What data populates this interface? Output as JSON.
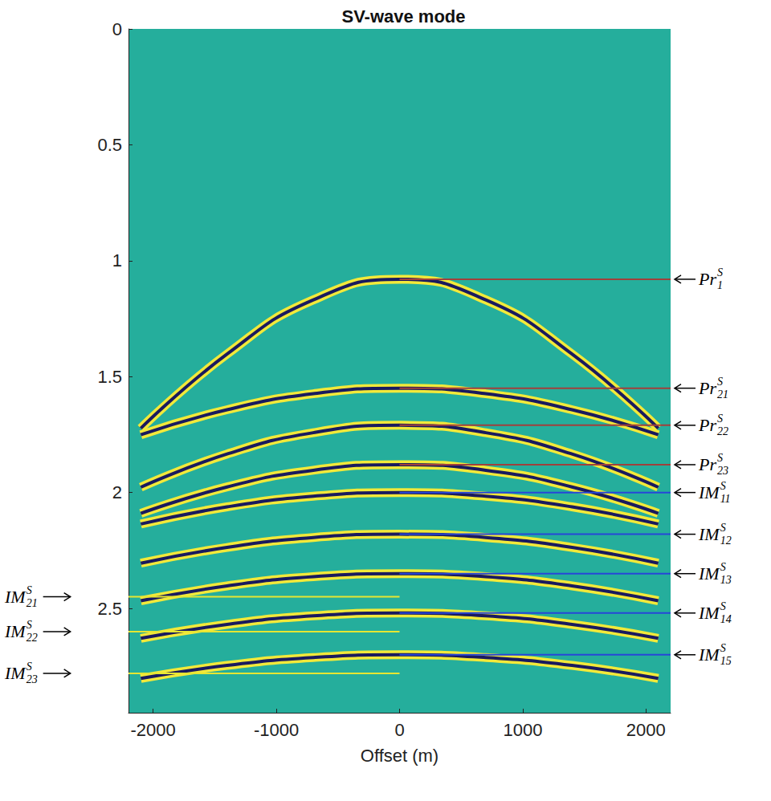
{
  "chart_data": {
    "type": "line",
    "title": "SV-wave mode",
    "x_label": "Offset (m)",
    "xlim": [
      -2200,
      2200
    ],
    "xticks": [
      -2000,
      -1000,
      0,
      1000,
      2000
    ],
    "ylim": [
      0,
      2.95
    ],
    "yticks": [
      0,
      0.5,
      1,
      1.5,
      2,
      2.5
    ],
    "grid": false,
    "color": "#1a1a5e",
    "x": [
      -2100,
      -1400,
      -700,
      0,
      700,
      1400,
      2100
    ],
    "series": [
      {
        "values": [
          1.723,
          1.403,
          1.169,
          1.08,
          1.169,
          1.403,
          1.723
        ]
      },
      {
        "values": [
          1.751,
          1.643,
          1.574,
          1.55,
          1.574,
          1.643,
          1.751
        ]
      },
      {
        "values": [
          1.977,
          1.834,
          1.742,
          1.71,
          1.742,
          1.834,
          1.977
        ]
      },
      {
        "values": [
          2.09,
          1.976,
          1.904,
          1.88,
          1.904,
          1.976,
          2.09
        ]
      },
      {
        "values": [
          2.136,
          2.062,
          2.016,
          2.0,
          2.016,
          2.062,
          2.136
        ]
      },
      {
        "values": [
          2.305,
          2.237,
          2.194,
          2.18,
          2.194,
          2.237,
          2.305
        ]
      },
      {
        "values": [
          2.467,
          2.403,
          2.363,
          2.35,
          2.363,
          2.403,
          2.467
        ]
      },
      {
        "values": [
          2.629,
          2.569,
          2.532,
          2.52,
          2.532,
          2.569,
          2.629
        ]
      },
      {
        "values": [
          2.802,
          2.746,
          2.712,
          2.7,
          2.712,
          2.746,
          2.802
        ]
      }
    ],
    "annotations": [
      {
        "text": "Pr",
        "sub": "1",
        "sup": "S",
        "y": 1.08,
        "side": "right",
        "color": "#a0403c"
      },
      {
        "text": "Pr",
        "sub": "21",
        "sup": "S",
        "y": 1.55,
        "side": "right",
        "color": "#a0403c"
      },
      {
        "text": "Pr",
        "sub": "22",
        "sup": "S",
        "y": 1.71,
        "side": "right",
        "color": "#a0403c"
      },
      {
        "text": "Pr",
        "sub": "23",
        "sup": "S",
        "y": 1.88,
        "side": "right",
        "color": "#a0403c"
      },
      {
        "text": "IM",
        "sub": "11",
        "sup": "S",
        "y": 2.0,
        "side": "right",
        "color": "#2746d8"
      },
      {
        "text": "IM",
        "sub": "12",
        "sup": "S",
        "y": 2.18,
        "side": "right",
        "color": "#2746d8"
      },
      {
        "text": "IM",
        "sub": "13",
        "sup": "S",
        "y": 2.35,
        "side": "right",
        "color": "#2746d8"
      },
      {
        "text": "IM",
        "sub": "14",
        "sup": "S",
        "y": 2.52,
        "side": "right",
        "color": "#2746d8"
      },
      {
        "text": "IM",
        "sub": "15",
        "sup": "S",
        "y": 2.7,
        "side": "right",
        "color": "#2746d8"
      },
      {
        "text": "IM",
        "sub": "21",
        "sup": "S",
        "y": 2.45,
        "side": "left",
        "color": "#e6e632"
      },
      {
        "text": "IM",
        "sub": "22",
        "sup": "S",
        "y": 2.6,
        "side": "left",
        "color": "#e6e632"
      },
      {
        "text": "IM",
        "sub": "23",
        "sup": "S",
        "y": 2.78,
        "side": "left",
        "color": "#e6e632"
      }
    ]
  }
}
